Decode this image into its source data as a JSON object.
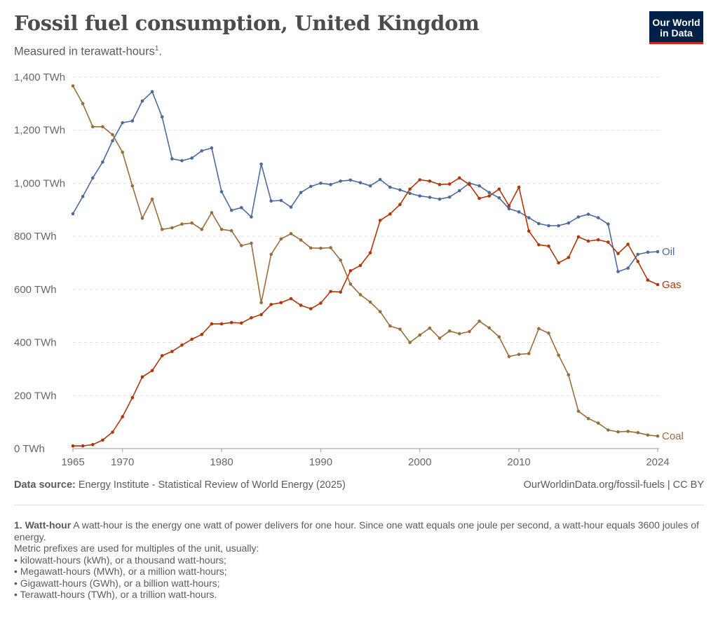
{
  "title": "Fossil fuel consumption, United Kingdom",
  "subtitle": "Measured in terawatt-hours",
  "subtitle_footnote_marker": "1",
  "subtitle_end": ".",
  "logo": {
    "line1": "Our World",
    "line2": "in Data",
    "bg_color": "#002147",
    "accent_color": "#ce261e"
  },
  "footer": {
    "source_label": "Data source:",
    "source_text": "Energy Institute - Statistical Review of World Energy (2025)",
    "url_text": "OurWorldinData.org/fossil-fuels | CC BY"
  },
  "notes": {
    "heading": "1. Watt-hour",
    "text": "A watt-hour is the energy one watt of power delivers for one hour. Since one watt equals one joule per second, a watt-hour equals 3600 joules of energy.",
    "prefix_line": "Metric prefixes are used for multiples of the unit, usually:",
    "bullets": [
      "kilowatt-hours (kWh), or a thousand watt-hours;",
      "Megawatt-hours (MWh), or a million watt-hours;",
      "Gigawatt-hours (GWh), or a billion watt-hours;",
      "Terawatt-hours (TWh), or a trillion watt-hours."
    ]
  },
  "chart_data": {
    "type": "line",
    "title": "Fossil fuel consumption, United Kingdom",
    "ylabel": "",
    "xlabel": "",
    "ylim": [
      0,
      1400
    ],
    "xlim": [
      1965,
      2024
    ],
    "y_ticks": [
      0,
      200,
      400,
      600,
      800,
      1000,
      1200,
      1400
    ],
    "y_tick_labels": [
      "0 TWh",
      "200 TWh",
      "400 TWh",
      "600 TWh",
      "800 TWh",
      "1,000 TWh",
      "1,200 TWh",
      "1,400 TWh"
    ],
    "x_ticks": [
      1965,
      1970,
      1980,
      1990,
      2000,
      2010,
      2024
    ],
    "x_tick_labels": [
      "1965",
      "1970",
      "1980",
      "1990",
      "2000",
      "2010",
      "2024"
    ],
    "grid": "horizontal dashed",
    "legend": "labels at line ends (right)",
    "x": [
      1965,
      1966,
      1967,
      1968,
      1969,
      1970,
      1971,
      1972,
      1973,
      1974,
      1975,
      1976,
      1977,
      1978,
      1979,
      1980,
      1981,
      1982,
      1983,
      1984,
      1985,
      1986,
      1987,
      1988,
      1989,
      1990,
      1991,
      1992,
      1993,
      1994,
      1995,
      1996,
      1997,
      1998,
      1999,
      2000,
      2001,
      2002,
      2003,
      2004,
      2005,
      2006,
      2007,
      2008,
      2009,
      2010,
      2011,
      2012,
      2013,
      2014,
      2015,
      2016,
      2017,
      2018,
      2019,
      2020,
      2021,
      2022,
      2023,
      2024
    ],
    "series": [
      {
        "name": "Oil",
        "color": "#4c6a9c",
        "values": [
          885,
          950,
          1020,
          1080,
          1160,
          1228,
          1235,
          1310,
          1345,
          1250,
          1092,
          1085,
          1095,
          1122,
          1133,
          968,
          898,
          908,
          873,
          1072,
          933,
          935,
          910,
          965,
          988,
          1000,
          995,
          1008,
          1012,
          1002,
          990,
          1014,
          985,
          975,
          962,
          952,
          947,
          940,
          948,
          972,
          1000,
          990,
          965,
          945,
          904,
          892,
          870,
          848,
          840,
          840,
          850,
          873,
          883,
          870,
          846,
          667,
          680,
          732,
          740,
          742
        ]
      },
      {
        "name": "Gas",
        "color": "#b13507",
        "values": [
          10,
          10,
          15,
          32,
          62,
          120,
          192,
          270,
          294,
          350,
          366,
          390,
          412,
          430,
          470,
          470,
          475,
          473,
          493,
          505,
          543,
          550,
          565,
          540,
          527,
          548,
          592,
          590,
          670,
          690,
          738,
          860,
          884,
          920,
          978,
          1013,
          1008,
          995,
          997,
          1020,
          995,
          943,
          952,
          978,
          915,
          985,
          820,
          768,
          763,
          700,
          720,
          798,
          782,
          787,
          778,
          735,
          770,
          705,
          635,
          618
        ]
      },
      {
        "name": "Coal",
        "color": "#996d39",
        "values": [
          1367,
          1300,
          1213,
          1213,
          1183,
          1117,
          990,
          868,
          940,
          826,
          832,
          846,
          850,
          826,
          889,
          826,
          821,
          765,
          774,
          550,
          732,
          790,
          810,
          786,
          756,
          755,
          757,
          710,
          620,
          580,
          552,
          516,
          462,
          450,
          400,
          428,
          454,
          416,
          443,
          433,
          441,
          480,
          455,
          421,
          347,
          355,
          358,
          452,
          435,
          352,
          278,
          141,
          113,
          96,
          70,
          63,
          65,
          60,
          51,
          47
        ]
      }
    ]
  }
}
